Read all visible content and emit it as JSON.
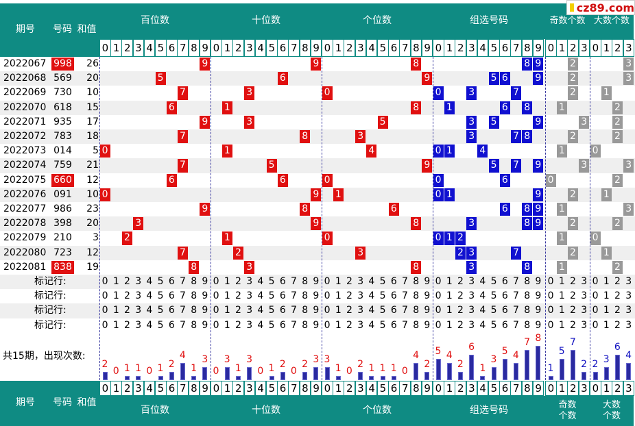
{
  "header": {
    "period": "期号",
    "code": "号码",
    "sum": "和值",
    "hundreds": "百位数",
    "tens": "十位数",
    "units": "个位数",
    "group": "组选号码",
    "odd": "奇数个数",
    "big": "大数个数"
  },
  "footer": {
    "period": "期号",
    "code": "号码",
    "sum": "和值",
    "hundreds": "百位数",
    "tens": "十位数",
    "units": "个位数",
    "group": "组选号码",
    "odd_line1": "奇数",
    "odd_line2": "个数",
    "big_line1": "大数",
    "big_line2": "个数"
  },
  "logo": "cz89.com",
  "marker_label": "标记行:",
  "marker_rows": 4,
  "stats_label": "共15期，出现次数:",
  "rows": [
    {
      "period": "2022067",
      "code": "998",
      "sum": "26",
      "code_red": true
    },
    {
      "period": "2022068",
      "code": "569",
      "sum": "20",
      "code_red": false
    },
    {
      "period": "2022069",
      "code": "730",
      "sum": "10",
      "code_red": false
    },
    {
      "period": "2022070",
      "code": "618",
      "sum": "15",
      "code_red": false
    },
    {
      "period": "2022071",
      "code": "935",
      "sum": "17",
      "code_red": false
    },
    {
      "period": "2022072",
      "code": "783",
      "sum": "18",
      "code_red": false
    },
    {
      "period": "2022073",
      "code": "014",
      "sum": "5",
      "code_red": false
    },
    {
      "period": "2022074",
      "code": "759",
      "sum": "21",
      "code_red": false
    },
    {
      "period": "2022075",
      "code": "660",
      "sum": "12",
      "code_red": true
    },
    {
      "period": "2022076",
      "code": "091",
      "sum": "10",
      "code_red": false
    },
    {
      "period": "2022077",
      "code": "986",
      "sum": "23",
      "code_red": false
    },
    {
      "period": "2022078",
      "code": "398",
      "sum": "20",
      "code_red": false
    },
    {
      "period": "2022079",
      "code": "210",
      "sum": "3",
      "code_red": false
    },
    {
      "period": "2022080",
      "code": "723",
      "sum": "12",
      "code_red": false
    },
    {
      "period": "2022081",
      "code": "838",
      "sum": "19",
      "code_red": true
    }
  ],
  "counts": {
    "hundreds": [
      2,
      0,
      1,
      1,
      0,
      1,
      2,
      4,
      1,
      3
    ],
    "tens": [
      0,
      3,
      1,
      3,
      0,
      1,
      2,
      0,
      2,
      3
    ],
    "units": [
      3,
      1,
      0,
      2,
      1,
      1,
      1,
      0,
      4,
      2
    ],
    "group": [
      5,
      4,
      2,
      6,
      1,
      3,
      5,
      4,
      7,
      8
    ],
    "odd": [
      1,
      5,
      7,
      2
    ],
    "big": [
      2,
      3,
      6,
      4
    ]
  },
  "colors": {
    "teal": "#0f8b83",
    "red": "#e01010",
    "blue": "#1010d0",
    "gray": "#999999",
    "count_text": "#e01010",
    "bar": "#2a2aa0"
  }
}
